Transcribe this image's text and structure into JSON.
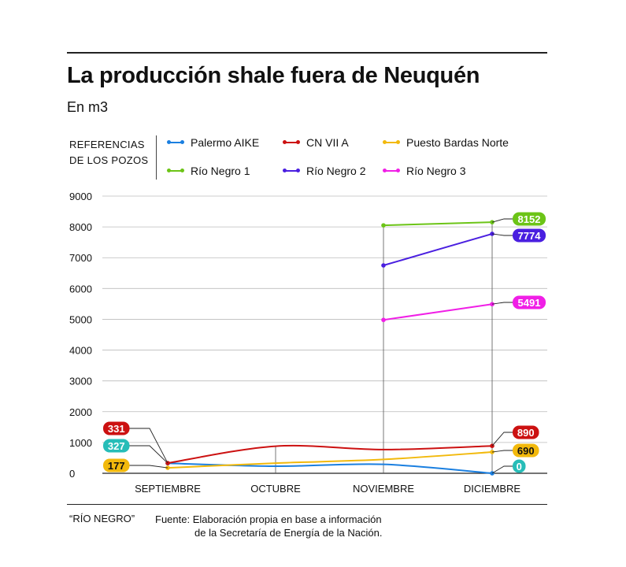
{
  "header": {
    "title": "La producción shale fuera de Neuquén",
    "subtitle": "En m3"
  },
  "legend": {
    "label_line1": "REFERENCIAS",
    "label_line2": "DE LOS POZOS",
    "items": [
      {
        "name": "Palermo AIKE",
        "color": "#1a7fe0"
      },
      {
        "name": "CN VII A",
        "color": "#cc1111"
      },
      {
        "name": "Puesto Bardas Norte",
        "color": "#f2b90c"
      },
      {
        "name": "Río Negro 1",
        "color": "#6cc417"
      },
      {
        "name": "Río Negro 2",
        "color": "#4a1fe0"
      },
      {
        "name": "Río Negro 3",
        "color": "#f01fe6"
      }
    ]
  },
  "chart_data": {
    "type": "line",
    "categories": [
      "SEPTIEMBRE",
      "OCTUBRE",
      "NOVIEMBRE",
      "DICIEMBRE"
    ],
    "ylim": [
      0,
      9000
    ],
    "yticks": [
      "0",
      "1000",
      "2000",
      "3000",
      "4000",
      "5000",
      "6000",
      "7000",
      "8000",
      "9000"
    ],
    "grid": true,
    "series": [
      {
        "name": "Palermo AIKE",
        "color": "#1a7fe0",
        "values": [
          327,
          230,
          290,
          0
        ],
        "start_label": "327",
        "end_label": "0",
        "start_badge_color": "#27bdb8",
        "end_badge_color": "#27bdb8"
      },
      {
        "name": "CN VII A",
        "color": "#cc1111",
        "values": [
          331,
          880,
          770,
          890
        ],
        "start_label": "331",
        "end_label": "890",
        "start_badge_color": "#cc1111",
        "end_badge_color": "#cc1111"
      },
      {
        "name": "Puesto Bardas Norte",
        "color": "#f2b90c",
        "values": [
          177,
          330,
          450,
          690
        ],
        "start_label": "177",
        "end_label": "690",
        "start_badge_color": "#f2b90c",
        "end_badge_color": "#f2b90c"
      },
      {
        "name": "Río Negro 1",
        "color": "#6cc417",
        "values": [
          null,
          null,
          8050,
          8152
        ],
        "end_label": "8152",
        "end_badge_color": "#6cc417"
      },
      {
        "name": "Río Negro 2",
        "color": "#4a1fe0",
        "values": [
          null,
          null,
          6750,
          7774
        ],
        "end_label": "7774",
        "end_badge_color": "#4a1fe0"
      },
      {
        "name": "Río Negro 3",
        "color": "#f01fe6",
        "values": [
          null,
          null,
          4980,
          5491
        ],
        "end_label": "5491",
        "end_badge_color": "#f01fe6"
      }
    ]
  },
  "footer": {
    "source_tag": "“RÍO NEGRO”",
    "source_line1": "Fuente: Elaboración propia en base a información",
    "source_line2": "de la Secretaría de Energía de la Nación."
  }
}
